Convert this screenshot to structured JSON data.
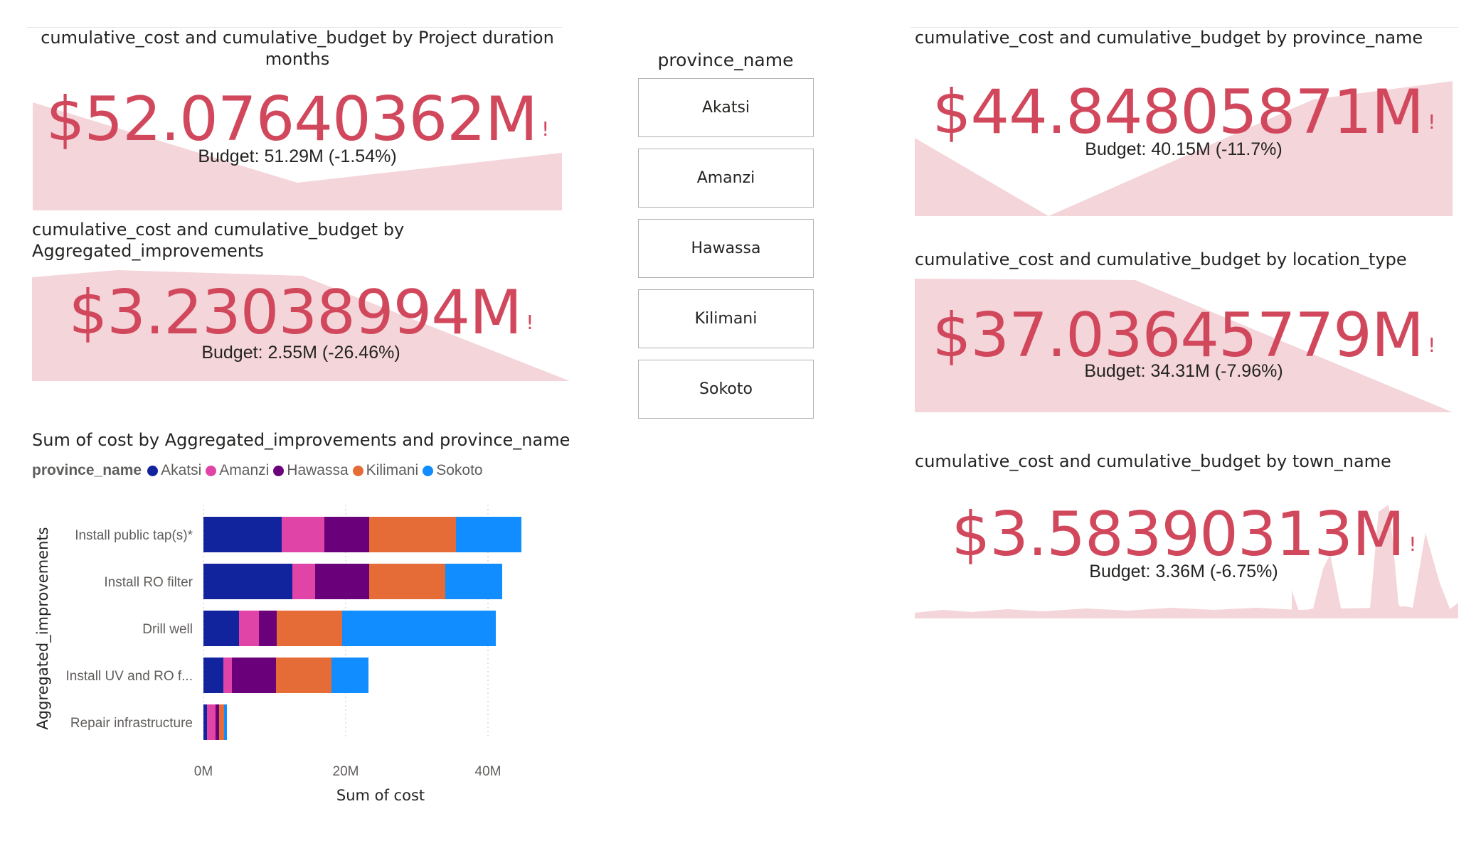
{
  "kpis": {
    "duration": {
      "title_line1": "cumulative_cost and cumulative_budget by Project duration",
      "title_line2": "months",
      "value": "$52.07640362M",
      "budget": "Budget: 51.29M (-1.54%)",
      "warn": "!"
    },
    "improvements": {
      "title_line1": "cumulative_cost and cumulative_budget by",
      "title_line2": "Aggregated_improvements",
      "value": "$3.23038994M",
      "budget": "Budget: 2.55M (-26.46%)",
      "warn": "!"
    },
    "province": {
      "title": "cumulative_cost and cumulative_budget by province_name",
      "value": "$44.84805871M",
      "budget": "Budget: 40.15M (-11.7%)",
      "warn": "!"
    },
    "location": {
      "title": "cumulative_cost and cumulative_budget by location_type",
      "value": "$37.03645779M",
      "budget": "Budget: 34.31M (-7.96%)",
      "warn": "!"
    },
    "town": {
      "title": "cumulative_cost and cumulative_budget by town_name",
      "value": "$3.58390313M",
      "budget": "Budget: 3.36M (-6.75%)",
      "warn": "!"
    }
  },
  "slicer": {
    "title": "province_name",
    "items": [
      "Akatsi",
      "Amanzi",
      "Hawassa",
      "Kilimani",
      "Sokoto"
    ]
  },
  "colors": {
    "kpi_text": "#d1485d",
    "kpi_fill": "#f4d5da",
    "Akatsi": "#12239e",
    "Amanzi": "#e044a7",
    "Hawassa": "#6b007b",
    "Kilimani": "#e66c37",
    "Sokoto": "#118dff"
  },
  "chart_data": {
    "type": "bar",
    "orientation": "horizontal",
    "stacked": true,
    "title": "Sum of cost by Aggregated_improvements and province_name",
    "legend_title": "province_name",
    "legend_position": "top-left",
    "xlabel": "Sum of cost",
    "ylabel": "Aggregated_improvements",
    "xlim": [
      0,
      45
    ],
    "xticks": [
      0,
      20,
      40
    ],
    "xtick_labels": [
      "0M",
      "20M",
      "40M"
    ],
    "categories": [
      "Install public tap(s)*",
      "Install RO filter",
      "Drill well",
      "Install UV and RO f...",
      "Repair infrastructure"
    ],
    "series": [
      {
        "name": "Akatsi",
        "values": [
          11.0,
          12.5,
          5.0,
          2.8,
          0.5
        ]
      },
      {
        "name": "Amanzi",
        "values": [
          6.0,
          3.2,
          2.8,
          1.2,
          1.2
        ]
      },
      {
        "name": "Hawassa",
        "values": [
          6.3,
          7.6,
          2.5,
          6.2,
          0.5
        ]
      },
      {
        "name": "Kilimani",
        "values": [
          12.2,
          10.7,
          9.2,
          7.8,
          0.7
        ]
      },
      {
        "name": "Sokoto",
        "values": [
          9.2,
          8.0,
          21.6,
          5.2,
          0.4
        ]
      }
    ]
  }
}
